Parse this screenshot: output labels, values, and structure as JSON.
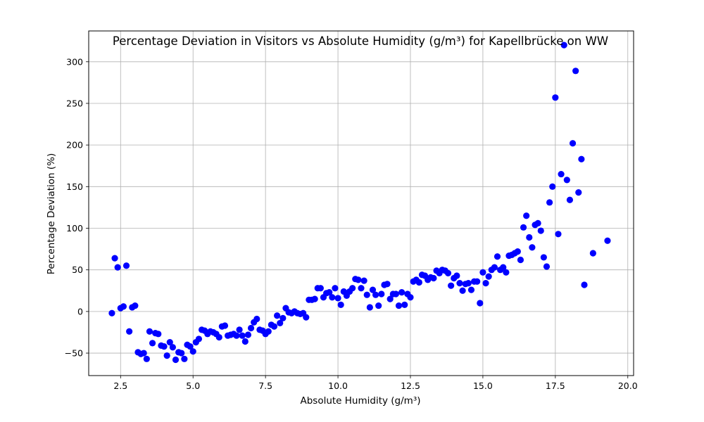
{
  "chart_data": {
    "type": "scatter",
    "title": "Percentage Deviation in Visitors vs Absolute Humidity (g/m³) for Kapellbrücke on WW",
    "xlabel": "Absolute Humidity (g/m³)",
    "ylabel": "Percentage Deviation (%)",
    "xlim": [
      1.4,
      20.2
    ],
    "ylim": [
      -77,
      337
    ],
    "xticks": [
      2.5,
      5.0,
      7.5,
      10.0,
      12.5,
      15.0,
      17.5,
      20.0
    ],
    "xtick_labels": [
      "2.5",
      "5.0",
      "7.5",
      "10.0",
      "12.5",
      "15.0",
      "17.5",
      "20.0"
    ],
    "yticks": [
      -50,
      0,
      50,
      100,
      150,
      200,
      250,
      300
    ],
    "ytick_labels": [
      "−50",
      "0",
      "50",
      "100",
      "150",
      "200",
      "250",
      "300"
    ],
    "grid": true,
    "marker_color": "#0000ff",
    "points": [
      [
        2.2,
        -2
      ],
      [
        2.3,
        64
      ],
      [
        2.4,
        53
      ],
      [
        2.5,
        4
      ],
      [
        2.6,
        6
      ],
      [
        2.7,
        55
      ],
      [
        2.8,
        -24
      ],
      [
        2.9,
        5
      ],
      [
        3.0,
        7
      ],
      [
        3.1,
        -49
      ],
      [
        3.2,
        -51
      ],
      [
        3.3,
        -50
      ],
      [
        3.4,
        -57
      ],
      [
        3.5,
        -24
      ],
      [
        3.6,
        -38
      ],
      [
        3.7,
        -26
      ],
      [
        3.8,
        -27
      ],
      [
        3.9,
        -41
      ],
      [
        4.0,
        -42
      ],
      [
        4.1,
        -53
      ],
      [
        4.2,
        -37
      ],
      [
        4.3,
        -43
      ],
      [
        4.4,
        -58
      ],
      [
        4.5,
        -49
      ],
      [
        4.6,
        -50
      ],
      [
        4.7,
        -57
      ],
      [
        4.8,
        -40
      ],
      [
        4.9,
        -42
      ],
      [
        5.0,
        -48
      ],
      [
        5.1,
        -37
      ],
      [
        5.2,
        -33
      ],
      [
        5.3,
        -22
      ],
      [
        5.4,
        -23
      ],
      [
        5.5,
        -27
      ],
      [
        5.6,
        -24
      ],
      [
        5.7,
        -25
      ],
      [
        5.8,
        -27
      ],
      [
        5.9,
        -31
      ],
      [
        6.0,
        -18
      ],
      [
        6.1,
        -17
      ],
      [
        6.2,
        -29
      ],
      [
        6.3,
        -28
      ],
      [
        6.4,
        -27
      ],
      [
        6.5,
        -29
      ],
      [
        6.6,
        -22
      ],
      [
        6.7,
        -29
      ],
      [
        6.8,
        -36
      ],
      [
        6.9,
        -28
      ],
      [
        7.0,
        -20
      ],
      [
        7.1,
        -13
      ],
      [
        7.2,
        -9
      ],
      [
        7.3,
        -22
      ],
      [
        7.4,
        -23
      ],
      [
        7.5,
        -27
      ],
      [
        7.6,
        -24
      ],
      [
        7.7,
        -16
      ],
      [
        7.8,
        -18
      ],
      [
        7.9,
        -5
      ],
      [
        8.0,
        -14
      ],
      [
        8.1,
        -8
      ],
      [
        8.2,
        4
      ],
      [
        8.3,
        -1
      ],
      [
        8.4,
        -2
      ],
      [
        8.5,
        0
      ],
      [
        8.6,
        -2
      ],
      [
        8.7,
        -3
      ],
      [
        8.8,
        -2
      ],
      [
        8.9,
        -7
      ],
      [
        9.0,
        14
      ],
      [
        9.1,
        14
      ],
      [
        9.2,
        15
      ],
      [
        9.3,
        28
      ],
      [
        9.4,
        28
      ],
      [
        9.5,
        17
      ],
      [
        9.6,
        22
      ],
      [
        9.7,
        23
      ],
      [
        9.8,
        17
      ],
      [
        9.9,
        28
      ],
      [
        10.0,
        16
      ],
      [
        10.1,
        8
      ],
      [
        10.2,
        24
      ],
      [
        10.3,
        19
      ],
      [
        10.4,
        24
      ],
      [
        10.5,
        28
      ],
      [
        10.6,
        39
      ],
      [
        10.7,
        38
      ],
      [
        10.8,
        28
      ],
      [
        10.9,
        37
      ],
      [
        11.0,
        20
      ],
      [
        11.1,
        5
      ],
      [
        11.2,
        26
      ],
      [
        11.3,
        20
      ],
      [
        11.4,
        7
      ],
      [
        11.5,
        21
      ],
      [
        11.6,
        32
      ],
      [
        11.7,
        33
      ],
      [
        11.8,
        15
      ],
      [
        11.9,
        21
      ],
      [
        12.0,
        21
      ],
      [
        12.1,
        7
      ],
      [
        12.2,
        23
      ],
      [
        12.3,
        8
      ],
      [
        12.4,
        21
      ],
      [
        12.5,
        17
      ],
      [
        12.6,
        36
      ],
      [
        12.7,
        38
      ],
      [
        12.8,
        35
      ],
      [
        12.9,
        44
      ],
      [
        13.0,
        43
      ],
      [
        13.1,
        38
      ],
      [
        13.2,
        41
      ],
      [
        13.3,
        40
      ],
      [
        13.4,
        49
      ],
      [
        13.5,
        46
      ],
      [
        13.6,
        50
      ],
      [
        13.7,
        49
      ],
      [
        13.8,
        46
      ],
      [
        13.9,
        31
      ],
      [
        14.0,
        40
      ],
      [
        14.1,
        43
      ],
      [
        14.2,
        34
      ],
      [
        14.3,
        25
      ],
      [
        14.4,
        33
      ],
      [
        14.5,
        34
      ],
      [
        14.6,
        26
      ],
      [
        14.7,
        36
      ],
      [
        14.8,
        36
      ],
      [
        14.9,
        10
      ],
      [
        15.0,
        47
      ],
      [
        15.1,
        34
      ],
      [
        15.2,
        42
      ],
      [
        15.3,
        50
      ],
      [
        15.4,
        53
      ],
      [
        15.5,
        66
      ],
      [
        15.6,
        50
      ],
      [
        15.7,
        53
      ],
      [
        15.8,
        47
      ],
      [
        15.9,
        67
      ],
      [
        16.0,
        68
      ],
      [
        16.1,
        70
      ],
      [
        16.2,
        72
      ],
      [
        16.3,
        62
      ],
      [
        16.4,
        101
      ],
      [
        16.5,
        115
      ],
      [
        16.6,
        89
      ],
      [
        16.7,
        77
      ],
      [
        16.8,
        104
      ],
      [
        16.9,
        106
      ],
      [
        17.0,
        97
      ],
      [
        17.1,
        65
      ],
      [
        17.2,
        54
      ],
      [
        17.3,
        131
      ],
      [
        17.4,
        150
      ],
      [
        17.5,
        257
      ],
      [
        17.6,
        93
      ],
      [
        17.7,
        165
      ],
      [
        17.8,
        320
      ],
      [
        17.9,
        158
      ],
      [
        18.0,
        134
      ],
      [
        18.1,
        202
      ],
      [
        18.2,
        289
      ],
      [
        18.3,
        143
      ],
      [
        18.4,
        183
      ],
      [
        18.5,
        32
      ],
      [
        18.8,
        70
      ],
      [
        19.3,
        85
      ]
    ]
  }
}
